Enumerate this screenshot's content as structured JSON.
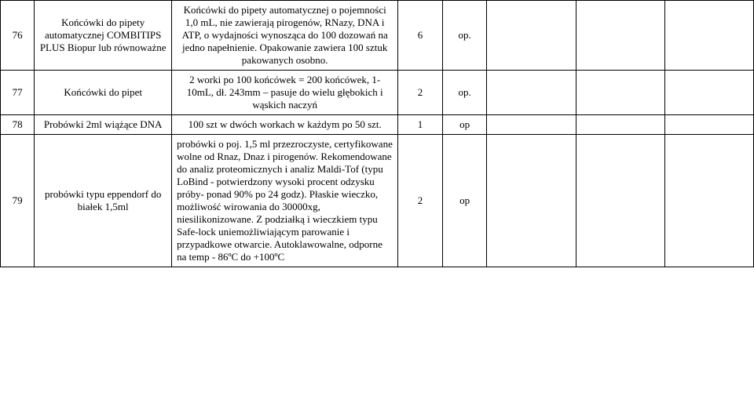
{
  "rows": [
    {
      "num": "76",
      "name": "Końcówki do pipety automatycznej COMBITIPS PLUS Biopur lub równoważne",
      "desc": "Końcówki do pipety automatycznej o pojemności 1,0 mL, nie zawierają pirogenów, RNazy, DNA i ATP, o wydajności wynosząca do 100 dozowań na jedno napełnienie. Opakowanie zawiera 100 sztuk pakowanych osobno.",
      "qty": "6",
      "unit": "op.",
      "descAlignLeft": false
    },
    {
      "num": "77",
      "name": "Końcówki do pipet",
      "desc": "2 worki po 100 końcówek = 200 końcówek, 1-10mL, dł. 243mm – pasuje do wielu głębokich i wąskich naczyń",
      "qty": "2",
      "unit": "op.",
      "descAlignLeft": false
    },
    {
      "num": "78",
      "name": "Probówki 2ml wiążące DNA",
      "desc": "100 szt w dwóch workach w każdym po 50 szt.",
      "qty": "1",
      "unit": "op",
      "descAlignLeft": false
    },
    {
      "num": "79",
      "name": "probówki typu eppendorf do białek 1,5ml",
      "desc": "probówki o poj. 1,5 ml przezroczyste, certyfikowane wolne od Rnaz, Dnaz i pirogenów. Rekomendowane do analiz proteomicznych i analiz Maldi-Tof (typu LoBind - potwierdzony wysoki procent odzysku próby- ponad 90% po 24 godz). Płaskie wieczko, możliwość wirowania do 30000xg, niesilikonizowane. Z podziałką i wieczkiem typu Safe-lock uniemożliwiającym parowanie i przypadkowe otwarcie. Autoklawowalne, odporne na temp - 86ºC do +100ºC",
      "qty": "2",
      "unit": "op",
      "descAlignLeft": true
    }
  ]
}
